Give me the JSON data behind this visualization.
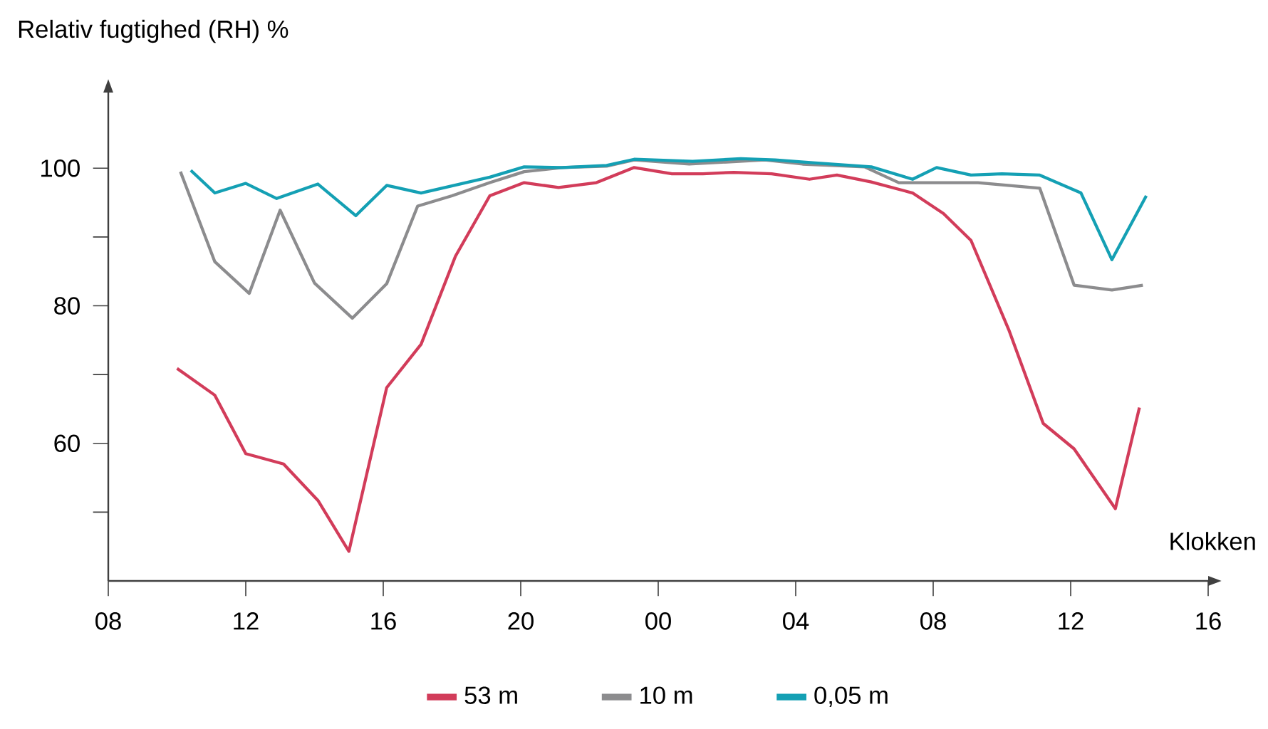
{
  "chart_data": {
    "type": "line",
    "ylabel": "Relativ fugtighed (RH) %",
    "xlabel": "Klokken",
    "xlim": [
      8,
      40
    ],
    "ylim": [
      40,
      111
    ],
    "xticks": [
      {
        "value": 8,
        "label": "08"
      },
      {
        "value": 12,
        "label": "12"
      },
      {
        "value": 16,
        "label": "16"
      },
      {
        "value": 20,
        "label": "20"
      },
      {
        "value": 24,
        "label": "00"
      },
      {
        "value": 28,
        "label": "04"
      },
      {
        "value": 32,
        "label": "08"
      },
      {
        "value": 36,
        "label": "12"
      },
      {
        "value": 40,
        "label": "16"
      }
    ],
    "yticks": [
      {
        "value": 50,
        "label": null
      },
      60,
      {
        "value": 70,
        "label": null
      },
      80,
      {
        "value": 90,
        "label": null
      },
      100
    ],
    "legend": "bottom",
    "grid": false,
    "marker": "none",
    "line_style": "solid",
    "series": [
      {
        "name": "53 m",
        "color": "#d23c5a",
        "x": [
          10,
          11.1,
          12,
          13.1,
          14.1,
          15,
          16.1,
          17.1,
          18.1,
          19.1,
          20.1,
          21.1,
          22.2,
          23.3,
          24.4,
          25.3,
          26.2,
          27.3,
          28.4,
          29.2,
          30.2,
          31.4,
          32.3,
          33.1,
          34.2,
          35.2,
          36.1,
          37.3,
          38
        ],
        "values": [
          70.9,
          67,
          58.5,
          57,
          51.7,
          44.3,
          68.1,
          74.4,
          87.2,
          96,
          97.9,
          97.2,
          97.9,
          100.1,
          99.2,
          99.2,
          99.4,
          99.2,
          98.4,
          99,
          98,
          96.4,
          93.4,
          89.5,
          76.5,
          62.9,
          59.2,
          50.5,
          65.2
        ]
      },
      {
        "name": "10 m",
        "color": "#8c8c8e",
        "x": [
          10.1,
          11.1,
          12.1,
          13,
          14,
          15.1,
          16.1,
          17,
          18,
          19.1,
          20.1,
          21.2,
          22.5,
          23.3,
          24.9,
          27.1,
          28.2,
          30,
          31,
          33.3,
          35.1,
          36.1,
          37.2,
          38.1
        ],
        "values": [
          99.5,
          86.4,
          81.8,
          93.9,
          83.3,
          78.2,
          83.2,
          94.5,
          96,
          97.9,
          99.5,
          100.1,
          100.3,
          101.2,
          100.6,
          101.2,
          100.6,
          100.2,
          97.9,
          97.9,
          97.1,
          83,
          82.3,
          83
        ]
      },
      {
        "name": "0,05 m",
        "color": "#14a0b4",
        "x": [
          10.4,
          11.1,
          12,
          12.9,
          14.1,
          15.2,
          16.1,
          17.1,
          19.1,
          20.1,
          21.2,
          22.5,
          23.3,
          25,
          26.4,
          27.4,
          28.5,
          30.2,
          31.4,
          32.1,
          33.1,
          34,
          35.1,
          36.3,
          37.2,
          38.2
        ],
        "values": [
          99.7,
          96.4,
          97.8,
          95.6,
          97.7,
          93.1,
          97.5,
          96.4,
          98.7,
          100.2,
          100.1,
          100.4,
          101.3,
          101,
          101.4,
          101.2,
          100.8,
          100.2,
          98.4,
          100.1,
          99,
          99.2,
          99,
          96.4,
          86.7,
          96
        ]
      }
    ]
  }
}
